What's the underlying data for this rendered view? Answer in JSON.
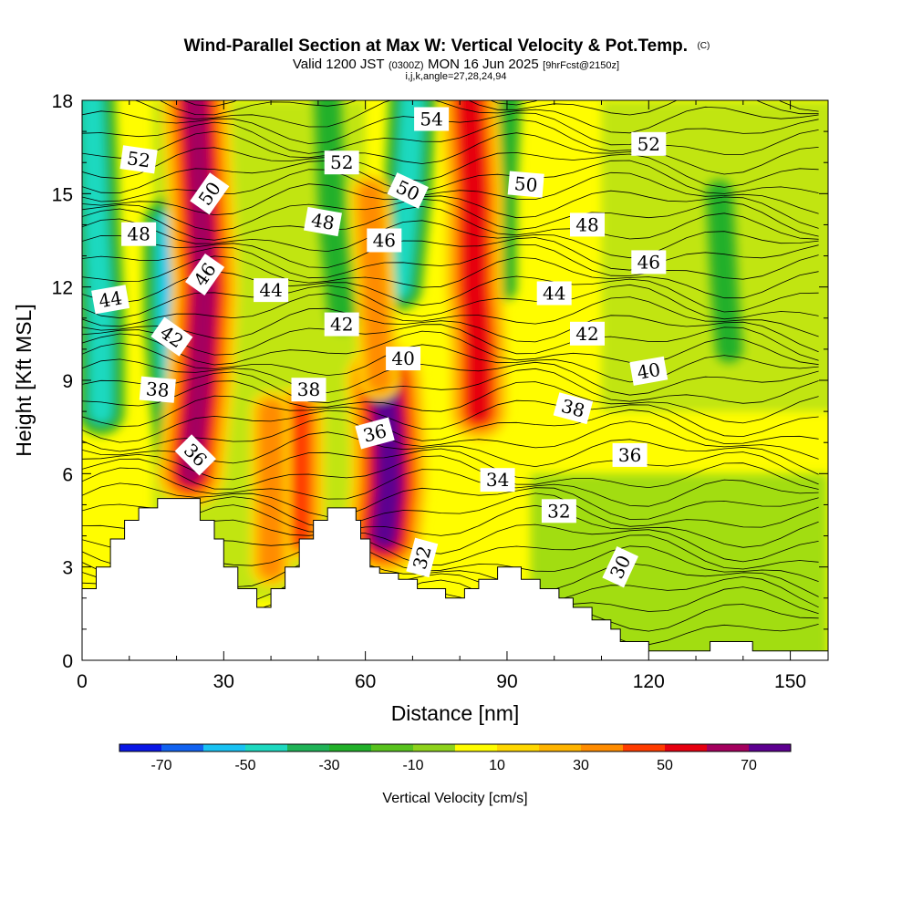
{
  "title": {
    "main": "Wind-Parallel Section at Max W: Vertical Velocity & Pot.Temp.",
    "copyright": "(C)",
    "valid_prefix": "Valid 1200 JST",
    "valid_utc": "(0300Z)",
    "valid_date": "MON 16 Jun 2025",
    "forecast": "[9hrFcst@2150z]",
    "indices": "i,j,k,angle=27,28,24,94"
  },
  "chart_data": {
    "type": "heatmap",
    "xlabel": "Distance [nm]",
    "ylabel": "Height [Kft MSL]",
    "xlim": [
      0,
      158
    ],
    "ylim": [
      0,
      18
    ],
    "xticks": [
      "0",
      "30",
      "60",
      "90",
      "120",
      "150"
    ],
    "yticks": [
      "0",
      "3",
      "6",
      "9",
      "12",
      "15",
      "18"
    ],
    "xtick_values": [
      0,
      30,
      60,
      90,
      120,
      150
    ],
    "ytick_values": [
      0,
      3,
      6,
      9,
      12,
      15,
      18
    ],
    "colorbar": {
      "label": "Vertical Velocity [cm/s]",
      "tick_labels": [
        "-70",
        "-50",
        "-30",
        "-10",
        "10",
        "30",
        "50",
        "70"
      ],
      "tick_values": [
        -70,
        -50,
        -30,
        -10,
        10,
        30,
        50,
        70
      ],
      "bins": [
        -80,
        -70,
        -60,
        -50,
        -40,
        -30,
        -20,
        -10,
        0,
        10,
        20,
        30,
        40,
        50,
        60,
        70,
        80
      ],
      "colors": [
        "#0a17e6",
        "#1262f0",
        "#19c2f3",
        "#1ed9c0",
        "#20b357",
        "#22b02a",
        "#58c21e",
        "#8ed21c",
        "#fffd00",
        "#ffd700",
        "#ffb400",
        "#ff8c00",
        "#ff3c00",
        "#e60010",
        "#a4005e",
        "#5d0090"
      ]
    },
    "terrain_kft": [
      [
        0,
        2.3
      ],
      [
        3,
        2.3
      ],
      [
        3,
        3.0
      ],
      [
        6,
        3.0
      ],
      [
        6,
        3.9
      ],
      [
        9,
        3.9
      ],
      [
        9,
        4.5
      ],
      [
        12,
        4.5
      ],
      [
        12,
        4.9
      ],
      [
        16,
        4.9
      ],
      [
        16,
        5.2
      ],
      [
        25,
        5.2
      ],
      [
        25,
        4.5
      ],
      [
        28,
        4.5
      ],
      [
        28,
        3.9
      ],
      [
        30,
        3.9
      ],
      [
        30,
        3.0
      ],
      [
        33,
        3.0
      ],
      [
        33,
        2.3
      ],
      [
        37,
        2.3
      ],
      [
        37,
        1.7
      ],
      [
        40,
        1.7
      ],
      [
        40,
        2.3
      ],
      [
        43,
        2.3
      ],
      [
        43,
        3.0
      ],
      [
        46,
        3.0
      ],
      [
        46,
        3.9
      ],
      [
        49,
        3.9
      ],
      [
        49,
        4.5
      ],
      [
        52,
        4.5
      ],
      [
        52,
        4.9
      ],
      [
        58,
        4.9
      ],
      [
        58,
        4.5
      ],
      [
        59,
        4.5
      ],
      [
        59,
        3.9
      ],
      [
        61,
        3.9
      ],
      [
        61,
        3.0
      ],
      [
        63,
        3.0
      ],
      [
        63,
        2.8
      ],
      [
        67,
        2.8
      ],
      [
        67,
        2.6
      ],
      [
        71,
        2.6
      ],
      [
        71,
        2.3
      ],
      [
        77,
        2.3
      ],
      [
        77,
        2.0
      ],
      [
        81,
        2.0
      ],
      [
        81,
        2.3
      ],
      [
        84,
        2.3
      ],
      [
        84,
        2.6
      ],
      [
        88,
        2.6
      ],
      [
        88,
        3.0
      ],
      [
        93,
        3.0
      ],
      [
        93,
        2.6
      ],
      [
        97,
        2.6
      ],
      [
        97,
        2.3
      ],
      [
        101,
        2.3
      ],
      [
        101,
        2.0
      ],
      [
        104,
        2.0
      ],
      [
        104,
        1.7
      ],
      [
        108,
        1.7
      ],
      [
        108,
        1.3
      ],
      [
        112,
        1.3
      ],
      [
        112,
        1.0
      ],
      [
        114,
        1.0
      ],
      [
        114,
        0.6
      ],
      [
        120,
        0.6
      ],
      [
        120,
        0.3
      ],
      [
        133,
        0.3
      ],
      [
        133,
        0.6
      ],
      [
        142,
        0.6
      ],
      [
        142,
        0.3
      ],
      [
        158,
        0.3
      ]
    ],
    "updraft_axes": [
      {
        "value": 60,
        "points": [
          [
            24,
            18
          ],
          [
            25,
            15
          ],
          [
            26,
            12
          ],
          [
            25,
            9
          ],
          [
            23,
            6
          ]
        ]
      },
      {
        "value": 50,
        "points": [
          [
            82,
            18
          ],
          [
            83,
            15
          ],
          [
            83,
            12
          ],
          [
            84,
            10
          ],
          [
            84,
            8
          ]
        ]
      },
      {
        "value": 70,
        "points": [
          [
            64,
            9
          ],
          [
            65,
            7
          ],
          [
            65,
            5.5
          ],
          [
            64,
            4
          ]
        ]
      },
      {
        "value": 40,
        "points": [
          [
            46,
            8
          ],
          [
            46,
            6
          ],
          [
            46,
            4
          ]
        ]
      },
      {
        "value": 30,
        "points": [
          [
            61,
            15
          ],
          [
            62,
            12
          ],
          [
            63,
            9
          ]
        ]
      },
      {
        "value": 30,
        "points": [
          [
            40,
            8
          ],
          [
            40,
            5
          ],
          [
            40,
            3
          ]
        ]
      }
    ],
    "downdraft_axes": [
      {
        "value": -40,
        "points": [
          [
            2,
            18
          ],
          [
            3,
            14
          ],
          [
            4,
            11
          ],
          [
            4,
            8
          ]
        ]
      },
      {
        "value": -50,
        "points": [
          [
            19,
            14
          ],
          [
            19,
            11
          ],
          [
            20,
            9
          ],
          [
            22,
            6
          ]
        ]
      },
      {
        "value": -40,
        "points": [
          [
            70,
            18
          ],
          [
            69,
            15
          ],
          [
            67,
            12
          ]
        ]
      },
      {
        "value": -20,
        "points": [
          [
            52,
            18
          ],
          [
            53,
            14
          ],
          [
            55,
            11
          ]
        ]
      },
      {
        "value": -20,
        "points": [
          [
            90,
            18
          ],
          [
            89,
            15
          ],
          [
            89,
            12
          ]
        ]
      },
      {
        "value": -20,
        "points": [
          [
            135,
            15
          ],
          [
            136,
            12
          ],
          [
            137,
            10
          ]
        ]
      }
    ],
    "theta_contour_labels": [
      {
        "text": "52",
        "x": 12,
        "y": 16.1,
        "angle": 8
      },
      {
        "text": "50",
        "x": 27,
        "y": 15.0,
        "angle": -55
      },
      {
        "text": "48",
        "x": 12,
        "y": 13.7,
        "angle": 0
      },
      {
        "text": "46",
        "x": 26,
        "y": 12.4,
        "angle": -55
      },
      {
        "text": "44",
        "x": 6,
        "y": 11.6,
        "angle": -10
      },
      {
        "text": "42",
        "x": 19,
        "y": 10.4,
        "angle": 35
      },
      {
        "text": "38",
        "x": 16,
        "y": 8.7,
        "angle": 5
      },
      {
        "text": "36",
        "x": 24,
        "y": 6.6,
        "angle": 45
      },
      {
        "text": "44",
        "x": 40,
        "y": 11.9,
        "angle": 0
      },
      {
        "text": "38",
        "x": 48,
        "y": 8.7,
        "angle": 0
      },
      {
        "text": "52",
        "x": 55,
        "y": 16.0,
        "angle": 0
      },
      {
        "text": "48",
        "x": 51,
        "y": 14.1,
        "angle": 10
      },
      {
        "text": "42",
        "x": 55,
        "y": 10.8,
        "angle": 0
      },
      {
        "text": "46",
        "x": 64,
        "y": 13.5,
        "angle": 0
      },
      {
        "text": "40",
        "x": 68,
        "y": 9.7,
        "angle": 0
      },
      {
        "text": "36",
        "x": 62,
        "y": 7.3,
        "angle": -15
      },
      {
        "text": "32",
        "x": 72,
        "y": 3.3,
        "angle": -75
      },
      {
        "text": "54",
        "x": 74,
        "y": 17.4,
        "angle": 0
      },
      {
        "text": "50",
        "x": 69,
        "y": 15.1,
        "angle": 25
      },
      {
        "text": "50",
        "x": 94,
        "y": 15.3,
        "angle": 5
      },
      {
        "text": "48",
        "x": 107,
        "y": 14.0,
        "angle": 0
      },
      {
        "text": "44",
        "x": 100,
        "y": 11.8,
        "angle": 0
      },
      {
        "text": "42",
        "x": 107,
        "y": 10.5,
        "angle": 0
      },
      {
        "text": "38",
        "x": 104,
        "y": 8.1,
        "angle": 15
      },
      {
        "text": "34",
        "x": 88,
        "y": 5.8,
        "angle": 0
      },
      {
        "text": "32",
        "x": 101,
        "y": 4.8,
        "angle": 0
      },
      {
        "text": "52",
        "x": 120,
        "y": 16.6,
        "angle": 0
      },
      {
        "text": "46",
        "x": 120,
        "y": 12.8,
        "angle": 0
      },
      {
        "text": "40",
        "x": 120,
        "y": 9.3,
        "angle": -10
      },
      {
        "text": "36",
        "x": 116,
        "y": 6.6,
        "angle": 0
      },
      {
        "text": "30",
        "x": 114,
        "y": 3.0,
        "angle": -65
      }
    ]
  }
}
